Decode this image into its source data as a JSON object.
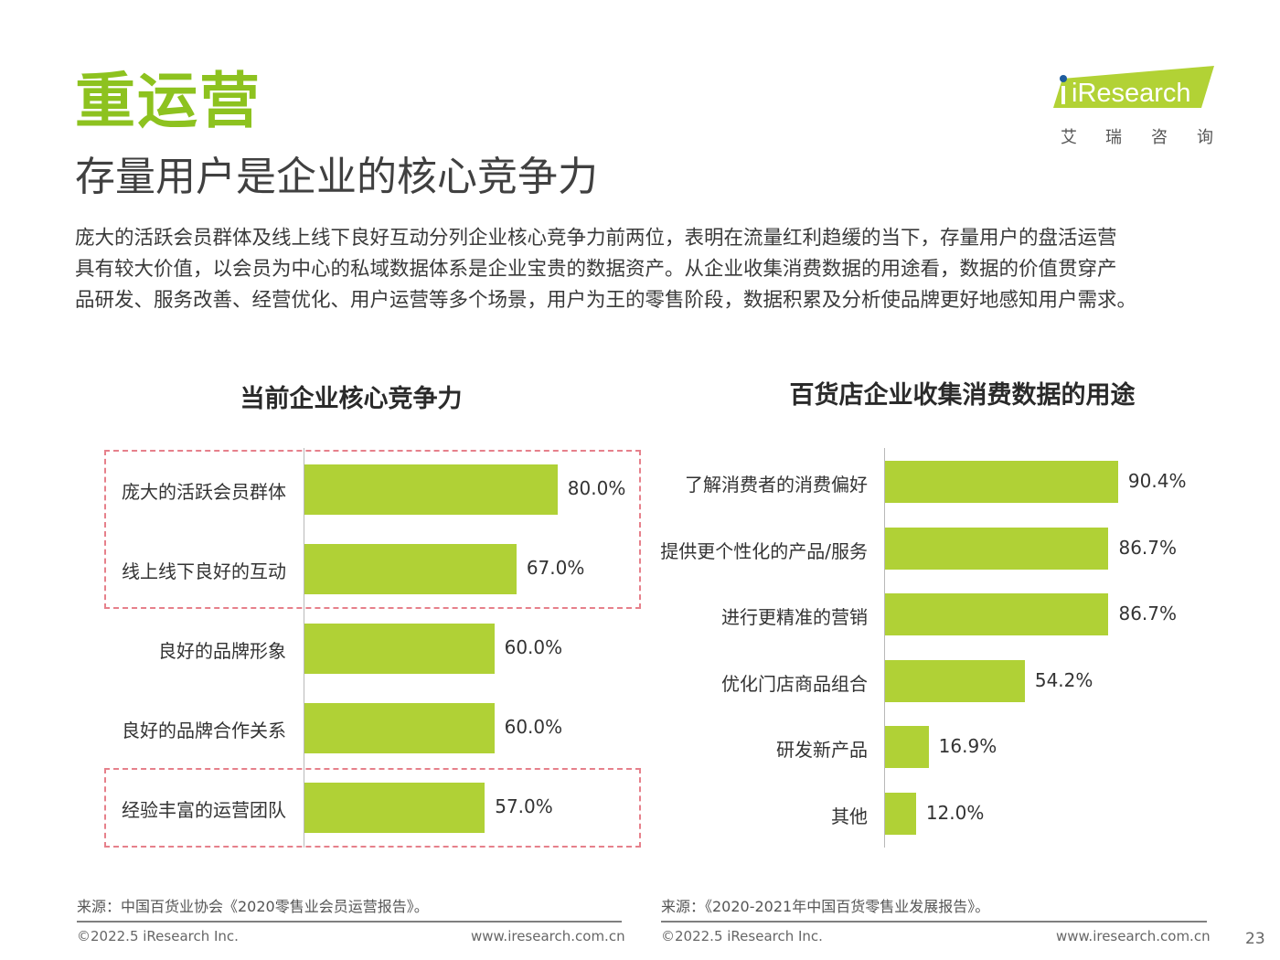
{
  "page": {
    "headline": "重运营",
    "subtitle": "存量用户是企业的核心竞争力",
    "intro_lines": [
      "庞大的活跃会员群体及线上线下良好互动分列企业核心竞争力前两位，表明在流量红利趋缓的当下，存量用户的盘活运营",
      "具有较大价值，以会员为中心的私域数据体系是企业宝贵的数据资产。从企业收集消费数据的用途看，数据的价值贯穿产",
      "品研发、服务改善、经营优化、用户运营等多个场景，用户为王的零售阶段，数据积累及分析使品牌更好地感知用户需求。"
    ],
    "page_number": "23"
  },
  "logo": {
    "text": "iResearch",
    "chinese": [
      "艾",
      "瑞",
      "咨",
      "询"
    ],
    "band_color": "#b2d235",
    "dot_color": "#1f5c9e"
  },
  "chart_data": [
    {
      "type": "bar",
      "orientation": "horizontal",
      "title": "当前企业核心竞争力",
      "categories": [
        "庞大的活跃会员群体",
        "线上线下良好的互动",
        "良好的品牌形象",
        "良好的品牌合作关系",
        "经验丰富的运营团队"
      ],
      "values": [
        80.0,
        67.0,
        60.0,
        60.0,
        57.0
      ],
      "value_labels": [
        "80.0%",
        "67.0%",
        "60.0%",
        "60.0%",
        "57.0%"
      ],
      "xlim": [
        0,
        100
      ],
      "bar_color": "#b0d136",
      "highlight_color": "#e6808b",
      "highlight_groups": [
        [
          0,
          1
        ],
        [
          4
        ]
      ],
      "grid": false,
      "source": "来源：中国百货业协会《2020零售业会员运营报告》。",
      "copyright": "©2022.5 iResearch Inc.",
      "website": "www.iresearch.com.cn"
    },
    {
      "type": "bar",
      "orientation": "horizontal",
      "title": "百货店企业收集消费数据的用途",
      "categories": [
        "了解消费者的消费偏好",
        "提供更个性化的产品/服务",
        "进行更精准的营销",
        "优化门店商品组合",
        "研发新产品",
        "其他"
      ],
      "values": [
        90.4,
        86.7,
        86.7,
        54.2,
        16.9,
        12.0
      ],
      "value_labels": [
        "90.4%",
        "86.7%",
        "86.7%",
        "54.2%",
        "16.9%",
        "12.0%"
      ],
      "xlim": [
        0,
        100
      ],
      "bar_color": "#b0d136",
      "grid": false,
      "source": "来源：《2020-2021年中国百货零售业发展报告》。",
      "copyright": "©2022.5 iResearch Inc.",
      "website": "www.iresearch.com.cn"
    }
  ]
}
